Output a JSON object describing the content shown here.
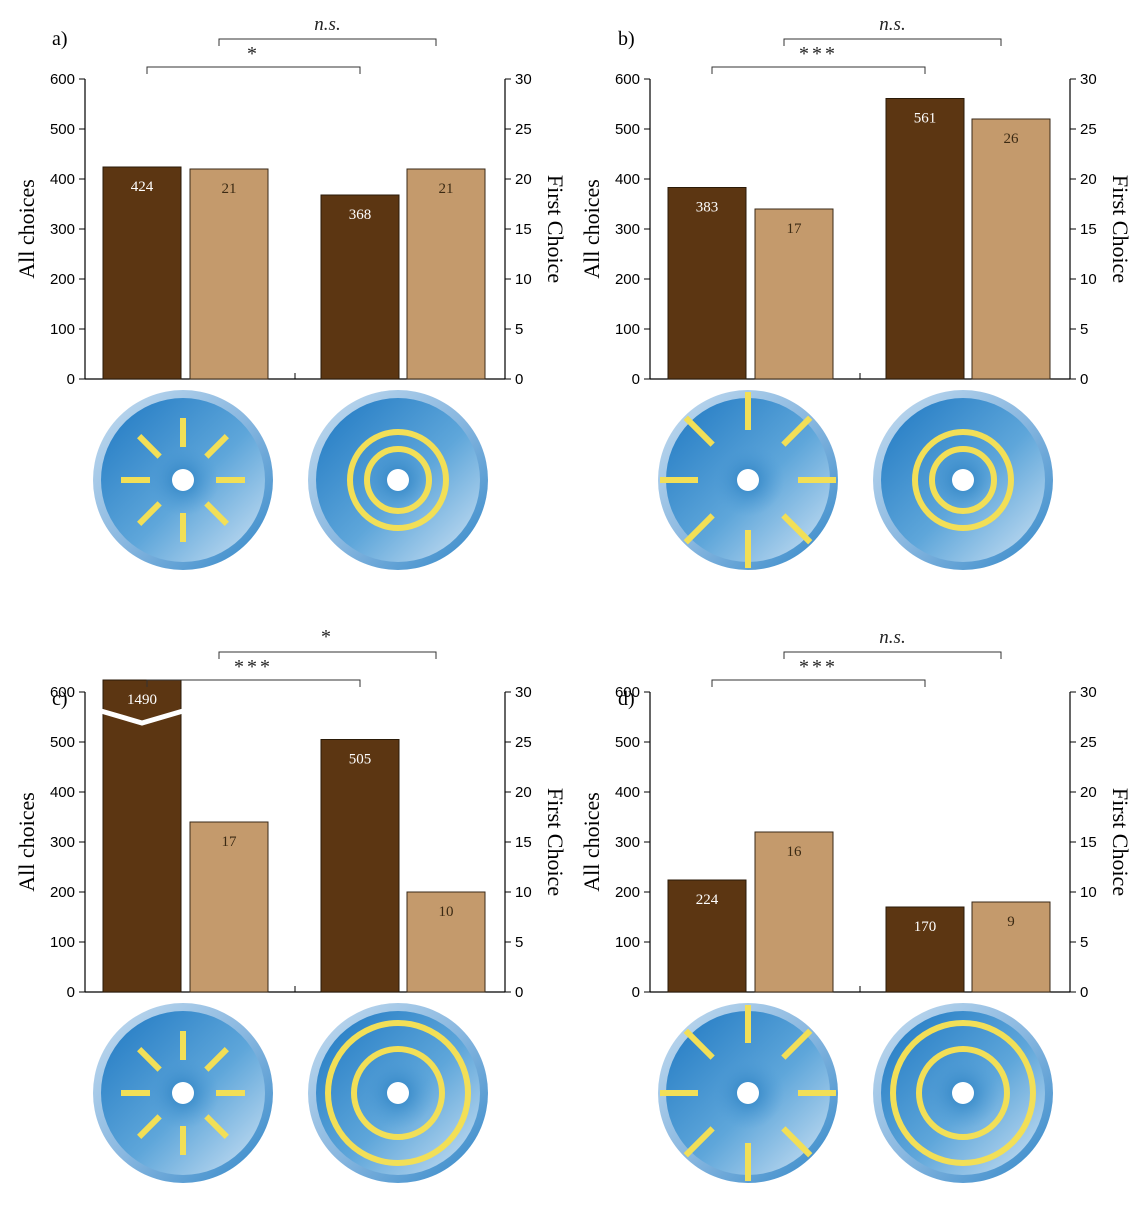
{
  "figure": {
    "colors": {
      "all_choices": "#5c3612",
      "first_choice": "#c49a6c",
      "disc_blue": "#2a88cc",
      "disc_rim": "#a8c8e8",
      "stripe_yellow": "#f2df57"
    }
  },
  "chart_data": [
    {
      "type": "bar",
      "panel_label": "a)",
      "left_axis": {
        "label": "All choices",
        "ylim": [
          0,
          600
        ],
        "ticks": [
          "0",
          "100",
          "200",
          "300",
          "400",
          "500",
          "600"
        ]
      },
      "right_axis": {
        "label": "First Choice",
        "ylim": [
          0,
          30
        ],
        "ticks": [
          "0",
          "5",
          "10",
          "15",
          "20",
          "25",
          "30"
        ]
      },
      "categories": [
        "radial",
        "concentric"
      ],
      "series": [
        {
          "values": [
            424,
            368
          ],
          "labels": [
            "424",
            "368"
          ],
          "axis": "left"
        },
        {
          "values": [
            21,
            21
          ],
          "labels": [
            "21",
            "21"
          ],
          "axis": "right"
        }
      ],
      "significance": [
        {
          "text": "*",
          "level": "lower"
        },
        {
          "text": "n.s.",
          "level": "upper"
        }
      ],
      "discs": [
        {
          "pattern": "radial",
          "size": "small"
        },
        {
          "pattern": "concentric",
          "size": "small"
        }
      ],
      "grid": false
    },
    {
      "type": "bar",
      "panel_label": "b)",
      "left_axis": {
        "label": "All choices",
        "ylim": [
          0,
          600
        ],
        "ticks": [
          "0",
          "100",
          "200",
          "300",
          "400",
          "500",
          "600"
        ]
      },
      "right_axis": {
        "label": "First Choice",
        "ylim": [
          0,
          30
        ],
        "ticks": [
          "0",
          "5",
          "10",
          "15",
          "20",
          "25",
          "30"
        ]
      },
      "categories": [
        "radial",
        "concentric"
      ],
      "series": [
        {
          "values": [
            383,
            561
          ],
          "labels": [
            "383",
            "561"
          ],
          "axis": "left"
        },
        {
          "values": [
            17,
            26
          ],
          "labels": [
            "17",
            "26"
          ],
          "axis": "right"
        }
      ],
      "significance": [
        {
          "text": "***",
          "level": "lower"
        },
        {
          "text": "n.s.",
          "level": "upper"
        }
      ],
      "discs": [
        {
          "pattern": "radial",
          "size": "large"
        },
        {
          "pattern": "concentric",
          "size": "small"
        }
      ],
      "grid": false
    },
    {
      "type": "bar",
      "panel_label": "c)",
      "left_axis": {
        "label": "All choices",
        "ylim": [
          0,
          600
        ],
        "ticks": [
          "0",
          "100",
          "200",
          "300",
          "400",
          "500",
          "600"
        ]
      },
      "right_axis": {
        "label": "First Choice",
        "ylim": [
          0,
          30
        ],
        "ticks": [
          "0",
          "5",
          "10",
          "15",
          "20",
          "25",
          "30"
        ]
      },
      "categories": [
        "radial",
        "concentric"
      ],
      "series": [
        {
          "values": [
            1490,
            505
          ],
          "labels": [
            "1490",
            "505"
          ],
          "axis": "left",
          "broken": [
            true,
            false
          ]
        },
        {
          "values": [
            17,
            10
          ],
          "labels": [
            "17",
            "10"
          ],
          "axis": "right"
        }
      ],
      "significance": [
        {
          "text": "***",
          "level": "lower"
        },
        {
          "text": "*",
          "level": "upper"
        }
      ],
      "discs": [
        {
          "pattern": "radial",
          "size": "small"
        },
        {
          "pattern": "concentric",
          "size": "large"
        }
      ],
      "grid": false
    },
    {
      "type": "bar",
      "panel_label": "d)",
      "left_axis": {
        "label": "All choices",
        "ylim": [
          0,
          600
        ],
        "ticks": [
          "0",
          "100",
          "200",
          "300",
          "400",
          "500",
          "600"
        ]
      },
      "right_axis": {
        "label": "First Choice",
        "ylim": [
          0,
          30
        ],
        "ticks": [
          "0",
          "5",
          "10",
          "15",
          "20",
          "25",
          "30"
        ]
      },
      "categories": [
        "radial",
        "concentric"
      ],
      "series": [
        {
          "values": [
            224,
            170
          ],
          "labels": [
            "224",
            "170"
          ],
          "axis": "left"
        },
        {
          "values": [
            16,
            9
          ],
          "labels": [
            "16",
            "9"
          ],
          "axis": "right"
        }
      ],
      "significance": [
        {
          "text": "***",
          "level": "lower"
        },
        {
          "text": "n.s.",
          "level": "upper"
        }
      ],
      "discs": [
        {
          "pattern": "radial",
          "size": "large"
        },
        {
          "pattern": "concentric",
          "size": "large"
        }
      ],
      "grid": false
    }
  ]
}
